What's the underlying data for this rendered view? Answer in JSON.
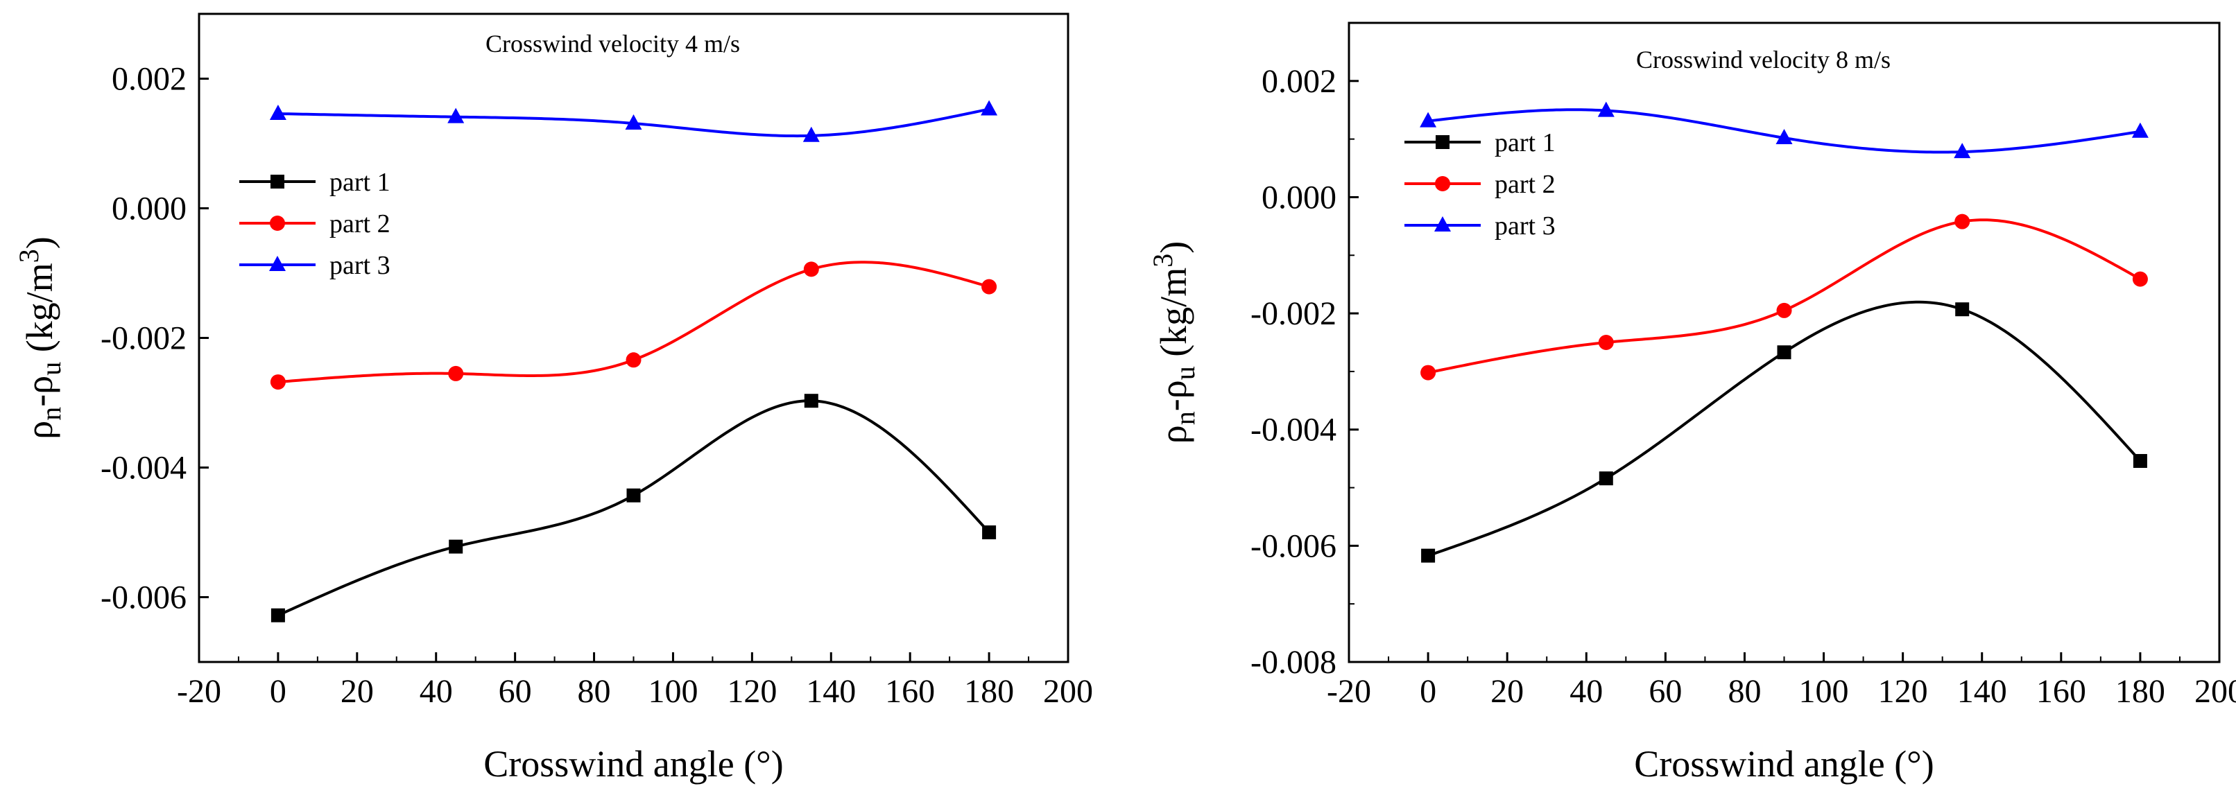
{
  "chart_data": [
    {
      "type": "line",
      "annotation": "Crosswind velocity 4 m/s",
      "xlabel": "Crosswind angle (°)",
      "ylabel": "ρn-ρu (kg/m3)",
      "xlim": [
        -20,
        200
      ],
      "ylim": [
        -0.007,
        0.003
      ],
      "xticks": [
        -20,
        0,
        20,
        40,
        60,
        80,
        100,
        120,
        140,
        160,
        180,
        200
      ],
      "yticks": [
        -0.006,
        -0.004,
        -0.002,
        0.0,
        0.002
      ],
      "ytick_labels": [
        "-0.006",
        "-0.004",
        "-0.002",
        "0.000",
        "0.002"
      ],
      "x": [
        0,
        45,
        90,
        135,
        180
      ],
      "legend_position": "left",
      "series": [
        {
          "name": "part 1",
          "color": "#000000",
          "marker": "square",
          "values": [
            -0.00628,
            -0.00522,
            -0.00443,
            -0.00297,
            -0.005
          ]
        },
        {
          "name": "part 2",
          "color": "#ff0000",
          "marker": "circle",
          "values": [
            -0.00268,
            -0.00255,
            -0.00234,
            -0.00094,
            -0.00121
          ]
        },
        {
          "name": "part 3",
          "color": "#0000ff",
          "marker": "triangle",
          "values": [
            0.00146,
            0.00141,
            0.00131,
            0.00112,
            0.00153
          ]
        }
      ]
    },
    {
      "type": "line",
      "annotation": "Crosswind velocity 8 m/s",
      "xlabel": "Crosswind angle (°)",
      "ylabel": "ρn-ρu (kg/m3)",
      "xlim": [
        -20,
        200
      ],
      "ylim": [
        -0.008,
        0.003
      ],
      "xticks": [
        -20,
        0,
        20,
        40,
        60,
        80,
        100,
        120,
        140,
        160,
        180,
        200
      ],
      "yticks": [
        -0.008,
        -0.006,
        -0.004,
        -0.002,
        0.0,
        0.002
      ],
      "ytick_labels": [
        "-0.008",
        "-0.006",
        "-0.004",
        "-0.002",
        "0.000",
        "0.002"
      ],
      "x": [
        0,
        45,
        90,
        135,
        180
      ],
      "legend_position": "top-left",
      "series": [
        {
          "name": "part 1",
          "color": "#000000",
          "marker": "square",
          "values": [
            -0.00617,
            -0.00484,
            -0.00267,
            -0.00193,
            -0.00454
          ]
        },
        {
          "name": "part 2",
          "color": "#ff0000",
          "marker": "circle",
          "values": [
            -0.00302,
            -0.0025,
            -0.00195,
            -0.00042,
            -0.00141
          ]
        },
        {
          "name": "part 3",
          "color": "#0000ff",
          "marker": "triangle",
          "values": [
            0.00131,
            0.00149,
            0.00102,
            0.00078,
            0.00113
          ]
        }
      ]
    }
  ]
}
